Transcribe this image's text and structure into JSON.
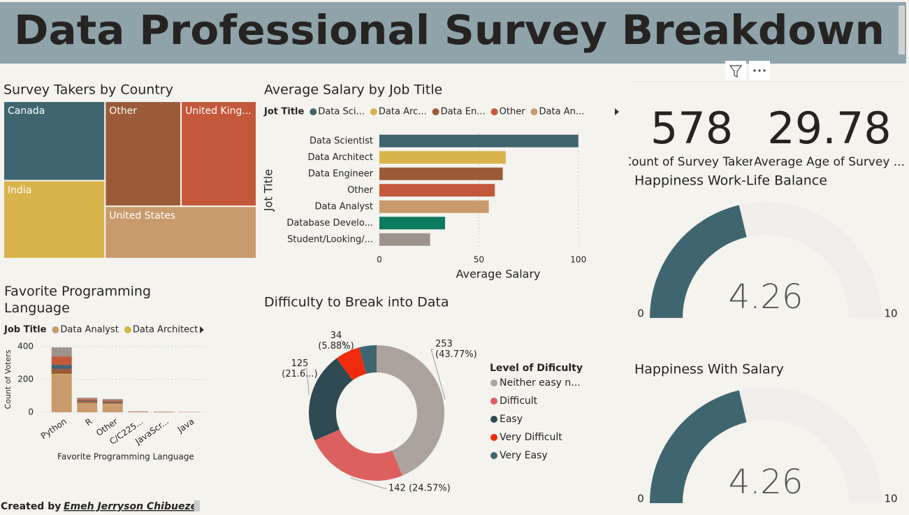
{
  "header": {
    "title": "Data Professional Survey Breakdown"
  },
  "cards": [
    {
      "value": 578,
      "label": "Count of Survey Takers"
    },
    {
      "value": 29.78,
      "label": "Average Age of Survey ..."
    }
  ],
  "footer": {
    "label": "Created by",
    "author": "Emeh Jerryson Chibueze"
  },
  "chart_data": [
    {
      "type": "treemap",
      "title": "Survey Takers by Country",
      "categories": [
        "Canada",
        "Other",
        "United King...",
        "India",
        "United States"
      ],
      "values": [
        117,
        116,
        115,
        115,
        115
      ],
      "colors": [
        "#3f6570",
        "#9c5b38",
        "#c4583a",
        "#d8b44a",
        "#c99b6c"
      ]
    },
    {
      "type": "hbar",
      "title": "Average Salary by Job Title",
      "legend_title": "Jot Title",
      "legend": [
        {
          "name": "Data Sci...",
          "color": "#3f6570"
        },
        {
          "name": "Data Arc...",
          "color": "#d8b44a"
        },
        {
          "name": "Data En...",
          "color": "#9c5b38"
        },
        {
          "name": "Other",
          "color": "#c4583a"
        },
        {
          "name": "Data An...",
          "color": "#c99b6c"
        }
      ],
      "categories": [
        "Data Scientist",
        "Data Architect",
        "Data Engineer",
        "Other",
        "Data Analyst",
        "Database Develo...",
        "Student/Looking/..."
      ],
      "values": [
        100,
        63.5,
        62,
        58,
        55,
        33,
        25.5
      ],
      "colors": [
        "#3f6570",
        "#d8b44a",
        "#9c5b38",
        "#c4583a",
        "#c99b6c",
        "#0b7a5e",
        "#9e938a"
      ],
      "xlim": [
        0,
        105
      ],
      "xticks": [
        0,
        50,
        100
      ],
      "x_label": "Average Salary",
      "y_label": "Jot Title",
      "grid": true
    },
    {
      "type": "stacked_bar",
      "title": "Favorite Programming Language",
      "legend_title": "Job Title",
      "categories": [
        "Python",
        "R",
        "Other",
        "C/C225...",
        "JavaScr...",
        "Java"
      ],
      "series": [
        {
          "name": "Data Analyst",
          "color": "#c99b6c",
          "values": [
            231,
            55,
            50,
            3,
            2,
            1
          ]
        },
        {
          "name": "Data Architect",
          "color": "#d8b44a",
          "values": [
            3,
            2,
            2,
            0,
            0,
            0
          ]
        },
        {
          "color": "#9c5b38",
          "values": [
            30,
            8,
            8,
            1,
            1,
            0
          ]
        },
        {
          "color": "#3f6570",
          "values": [
            25,
            5,
            5,
            0,
            0,
            0
          ]
        },
        {
          "color": "#c4583a",
          "values": [
            51,
            10,
            8,
            1,
            1,
            1
          ]
        },
        {
          "color": "#9e938a",
          "values": [
            55,
            9,
            8,
            1,
            0,
            0
          ]
        }
      ],
      "ylim": [
        0,
        420
      ],
      "yticks": [
        0,
        200,
        400
      ],
      "y_label": "Count of Voters",
      "x_label": "Favorite Programming Language",
      "grid": true
    },
    {
      "type": "donut",
      "title": "Difficulty to Break into Data",
      "legend_title": "Level of Dificulty",
      "categories": [
        "Neither easy n...",
        "Difficult",
        "Easy",
        "Very Difficult",
        "Very Easy"
      ],
      "values": [
        253,
        142,
        125,
        34,
        24
      ],
      "value_labels": [
        [
          "253",
          "(43.77%)"
        ],
        [
          "142 (24.57%)"
        ],
        [
          "125",
          "(21.6...)"
        ],
        [
          "34",
          "(5.88%)"
        ],
        null
      ],
      "colors": [
        "#aca49c",
        "#dd6060",
        "#2f4a53",
        "#f02a0c",
        "#3f6570"
      ]
    },
    {
      "type": "gauge",
      "title": "Happiness Work-Life Balance",
      "value": 4.26,
      "ylim": [
        0,
        10
      ],
      "yticks": [
        0,
        10
      ],
      "color": "#3f6570"
    },
    {
      "type": "gauge",
      "title": "Happiness With Salary",
      "value": 4.26,
      "ylim": [
        0,
        10
      ],
      "yticks": [
        0,
        10
      ],
      "color": "#3f6570"
    }
  ]
}
